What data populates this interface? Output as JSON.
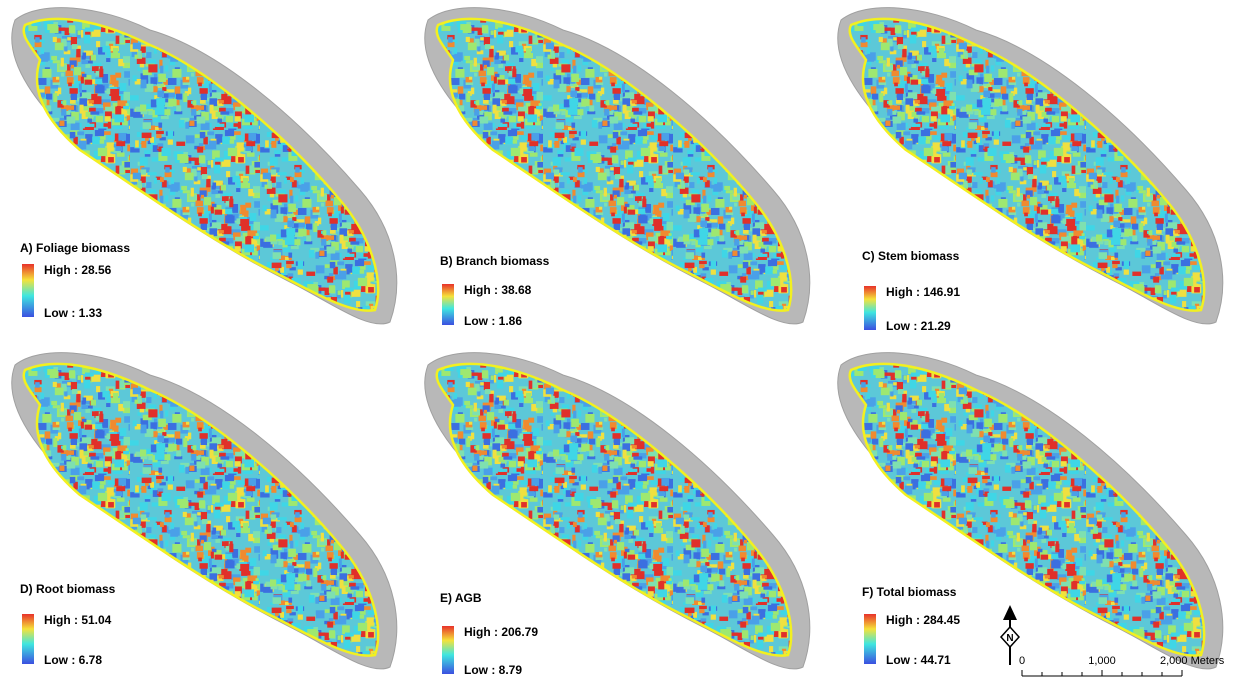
{
  "panels": [
    {
      "label": "A) Foliage biomass",
      "high": "High : 28.56",
      "low": "Low : 1.33"
    },
    {
      "label": "B) Branch biomass",
      "high": "High : 38.68",
      "low": "Low : 1.86"
    },
    {
      "label": "C) Stem biomass",
      "high": "High : 146.91",
      "low": "Low : 21.29"
    },
    {
      "label": "D) Root biomass",
      "high": "High : 51.04",
      "low": "Low : 6.78"
    },
    {
      "label": "E) AGB",
      "high": "High : 206.79",
      "low": "Low : 8.79"
    },
    {
      "label": "F) Total biomass",
      "high": "High : 284.45",
      "low": "Low : 44.71"
    }
  ],
  "north_arrow": "N",
  "scale_bar": {
    "labels": [
      "0",
      "1,000",
      "2,000 Meters"
    ]
  }
}
